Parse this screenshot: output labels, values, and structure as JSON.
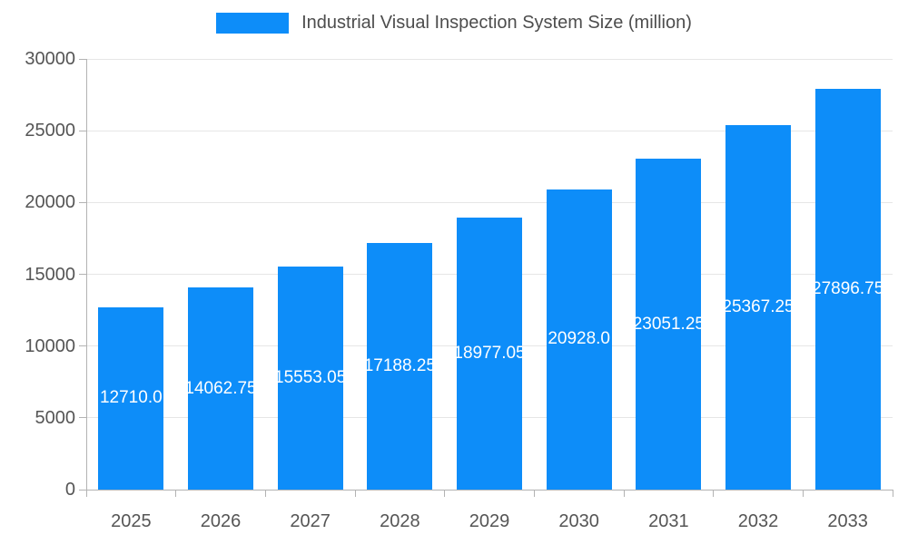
{
  "legend": {
    "label": "Industrial Visual Inspection System Size (million)"
  },
  "colors": {
    "bar": "#0d8df9",
    "grid": "#e6e6e6",
    "axis": "#b3b3b3",
    "tick_text": "#555555",
    "value_text": "#ffffff"
  },
  "chart_data": {
    "type": "bar",
    "title": "Industrial Visual Inspection System Size (million)",
    "categories": [
      "2025",
      "2026",
      "2027",
      "2028",
      "2029",
      "2030",
      "2031",
      "2032",
      "2033"
    ],
    "values": [
      12710.0,
      14062.75,
      15553.05,
      17188.25,
      18977.05,
      20928.0,
      23051.25,
      25367.25,
      27896.75
    ],
    "value_labels": [
      "12710.0",
      "14062.75",
      "15553.05",
      "17188.25",
      "18977.05",
      "20928.0",
      "23051.25",
      "25367.25",
      "27896.75"
    ],
    "xlabel": "",
    "ylabel": "",
    "ylim": [
      0,
      30000
    ],
    "yticks": [
      0,
      5000,
      10000,
      15000,
      20000,
      25000,
      30000
    ],
    "grid": true,
    "legend_position": "top"
  }
}
